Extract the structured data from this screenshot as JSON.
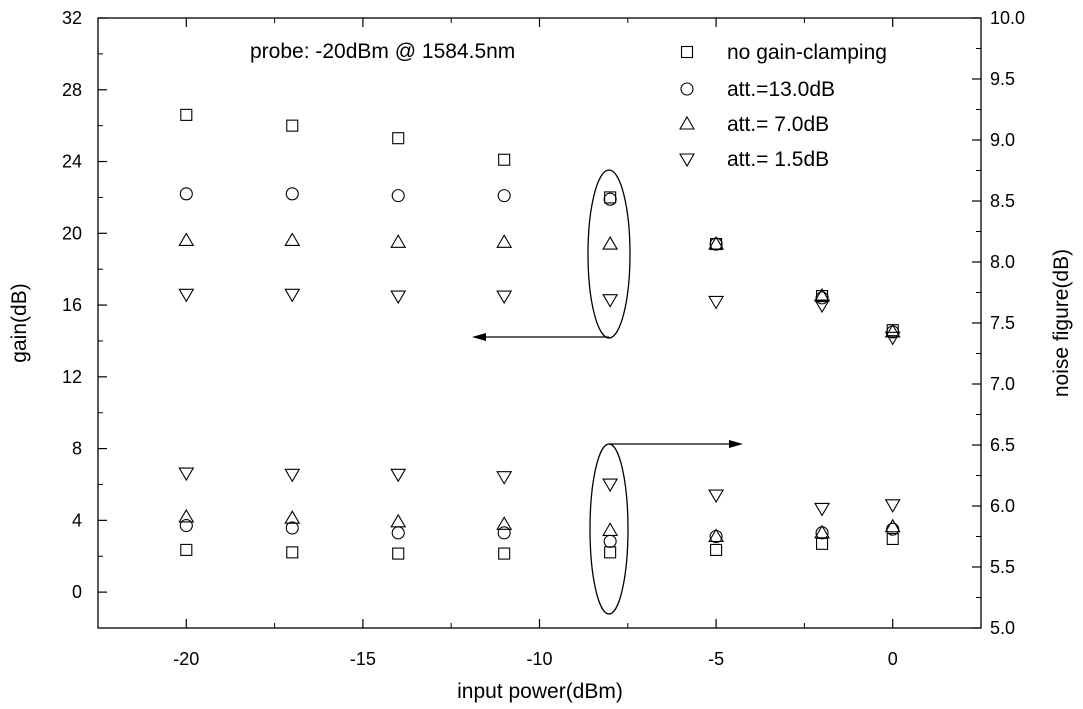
{
  "chart_data": {
    "type": "scatter",
    "xlabel": "input power(dBm)",
    "ylabel": "gain(dB)",
    "y2label": "noise figure(dB)",
    "annotation": "probe: -20dBm @ 1584.5nm",
    "xlim": [
      -22.5,
      2.5
    ],
    "ylim": [
      -2,
      32
    ],
    "y2lim": [
      5.0,
      10.0
    ],
    "x_ticks": [
      -20,
      -15,
      -10,
      -5,
      0
    ],
    "y_ticks": [
      0,
      4,
      8,
      12,
      16,
      20,
      24,
      28,
      32
    ],
    "y2_ticks": [
      "5.0",
      "5.5",
      "6.0",
      "6.5",
      "7.0",
      "7.5",
      "8.0",
      "8.5",
      "9.0",
      "9.5",
      "10.0"
    ],
    "legend_position": "top-right",
    "x": [
      -20,
      -17,
      -14,
      -11,
      -8,
      -5,
      -2,
      0
    ],
    "series": [
      {
        "name": "no gain-clamping",
        "marker": "square",
        "gain": [
          26.6,
          26.0,
          25.3,
          24.1,
          22.0,
          19.4,
          16.5,
          14.6
        ],
        "noise_figure": [
          5.64,
          5.62,
          5.61,
          5.61,
          5.62,
          5.64,
          5.69,
          5.73
        ]
      },
      {
        "name": "att.=13.0dB",
        "marker": "circle",
        "gain": [
          22.2,
          22.2,
          22.1,
          22.1,
          21.9,
          19.4,
          16.4,
          14.5
        ],
        "noise_figure": [
          5.84,
          5.82,
          5.78,
          5.78,
          5.71,
          5.75,
          5.78,
          5.81
        ]
      },
      {
        "name": "att.= 7.0dB",
        "marker": "triangle-up",
        "gain": [
          19.6,
          19.6,
          19.5,
          19.5,
          19.4,
          19.4,
          16.5,
          14.5
        ],
        "noise_figure": [
          5.91,
          5.9,
          5.87,
          5.85,
          5.8,
          5.75,
          5.78,
          5.83
        ]
      },
      {
        "name": "att.=  1.5dB",
        "marker": "triangle-down",
        "gain": [
          16.6,
          16.6,
          16.5,
          16.5,
          16.3,
          16.2,
          16.0,
          14.2
        ],
        "noise_figure": [
          6.27,
          6.26,
          6.26,
          6.24,
          6.18,
          6.09,
          5.98,
          6.01
        ]
      }
    ]
  }
}
